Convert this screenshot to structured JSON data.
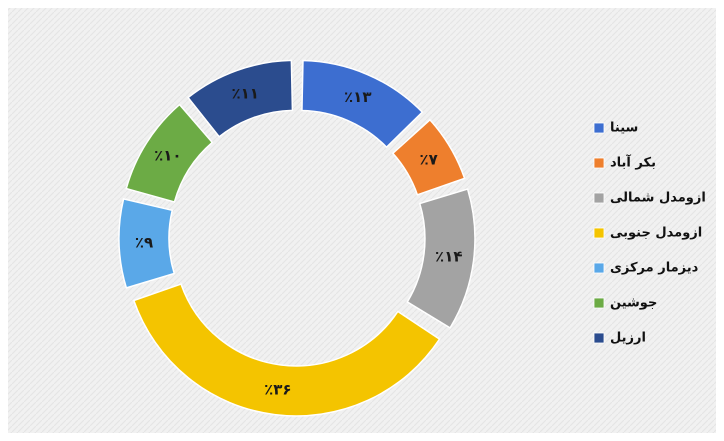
{
  "chart_data": {
    "type": "donut",
    "categories": [
      "سینا",
      "بکر آباد",
      "ازومدل شمالی",
      "ازومدل جنوبی",
      "دیزمار مرکزی",
      "جوشین",
      "ارزیل"
    ],
    "values": [
      13,
      7,
      14,
      36,
      9,
      10,
      11
    ],
    "value_labels": [
      "٪۱۳",
      "٪۷",
      "٪۱۴",
      "٪۳۶",
      "٪۹",
      "٪۱۰",
      "٪۱۱"
    ],
    "colors": [
      "#3d6ed0",
      "#ee7f2d",
      "#a3a3a3",
      "#f4c400",
      "#5aa8e8",
      "#6cab45",
      "#2b4c8e"
    ],
    "legend": "right"
  }
}
